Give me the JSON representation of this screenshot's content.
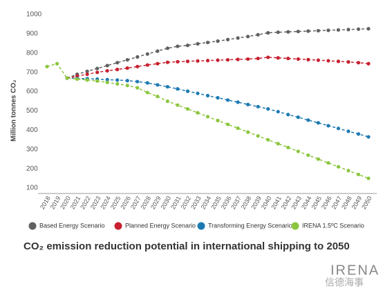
{
  "chart_data": {
    "type": "line",
    "title": "CO₂ emission reduction potential in international shipping to 2050",
    "y_label": "Million tonnes CO₂",
    "categories": [
      "2018",
      "2019",
      "2020",
      "2021",
      "2022",
      "2023",
      "2024",
      "2025",
      "2026",
      "2027",
      "2028",
      "2029",
      "2030",
      "2031",
      "2032",
      "2033",
      "2034",
      "2035",
      "2036",
      "2037",
      "2038",
      "2039",
      "2040",
      "2041",
      "2042",
      "2043",
      "2044",
      "2045",
      "2046",
      "2047",
      "2048",
      "2049",
      "2050"
    ],
    "ylim": [
      100,
      1000
    ],
    "yticks": [
      100,
      200,
      300,
      400,
      500,
      600,
      700,
      800,
      900,
      1000
    ],
    "grid": false,
    "legend": "bottom",
    "series": [
      {
        "name": "Based Energy Scenario",
        "color": "#616161",
        "values": [
          null,
          null,
          670,
          690,
          705,
          720,
          735,
          750,
          765,
          780,
          795,
          810,
          825,
          835,
          840,
          848,
          855,
          862,
          870,
          878,
          886,
          895,
          905,
          908,
          910,
          912,
          914,
          916,
          918,
          920,
          922,
          924,
          926
        ]
      },
      {
        "name": "Planned Energy Scenario",
        "color": "#c8202f",
        "values": [
          null,
          null,
          670,
          680,
          690,
          700,
          708,
          715,
          722,
          730,
          738,
          745,
          752,
          755,
          757,
          759,
          761,
          763,
          765,
          767,
          769,
          772,
          778,
          775,
          772,
          769,
          766,
          763,
          760,
          757,
          754,
          750,
          745
        ]
      },
      {
        "name": "Transforming Energy Scenario",
        "color": "#1d7ab3",
        "values": [
          null,
          null,
          670,
          668,
          667,
          665,
          662,
          660,
          657,
          652,
          645,
          635,
          625,
          614,
          602,
          591,
          579,
          568,
          556,
          545,
          533,
          522,
          510,
          496,
          481,
          467,
          452,
          438,
          423,
          409,
          394,
          380,
          365
        ]
      },
      {
        "name": "IRENA 1.5ºC Scenario",
        "color": "#8cc63f",
        "values": [
          730,
          745,
          670,
          665,
          660,
          655,
          648,
          640,
          632,
          620,
          595,
          575,
          550,
          530,
          510,
          490,
          470,
          450,
          430,
          410,
          390,
          370,
          350,
          330,
          310,
          290,
          270,
          250,
          230,
          210,
          190,
          170,
          150
        ]
      }
    ]
  },
  "logo": "IRENA",
  "watermark": "信德海事"
}
